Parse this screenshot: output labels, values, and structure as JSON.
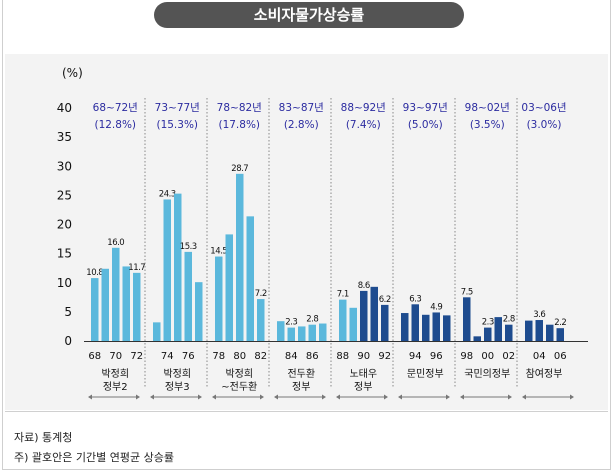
{
  "title": "소비자물가상승률",
  "source": "자료) 통계청",
  "note": "주) 괄호안은 기간별 연평균 상승률",
  "chart_data": {
    "type": "bar",
    "y_unit_label": "(%)",
    "ylim": [
      0,
      40
    ],
    "y_ticks": [
      "0",
      "5",
      "10",
      "15",
      "20",
      "25",
      "30",
      "35",
      "40"
    ],
    "colors": {
      "light": "#5bb8dc",
      "dark": "#1e4c8f",
      "period_text": "#2b2ba0"
    },
    "groups": [
      {
        "period": "68~72년",
        "avg": "(12.8%)",
        "label": [
          "박정희",
          "정부2"
        ],
        "color": "light",
        "values": [
          10.8,
          12.4,
          16.0,
          12.8,
          11.7
        ],
        "value_labels": [
          "10.8",
          "",
          "16.0",
          "",
          "11.7"
        ],
        "tick_labels": [
          "68",
          "",
          "70",
          "",
          "72"
        ]
      },
      {
        "period": "73~77년",
        "avg": "(15.3%)",
        "label": [
          "박정희",
          "정부3"
        ],
        "color": "light",
        "values": [
          3.2,
          24.3,
          25.3,
          15.3,
          10.1
        ],
        "value_labels": [
          "",
          "24.3",
          "",
          "15.3",
          ""
        ],
        "tick_labels": [
          "",
          "74",
          "",
          "76",
          ""
        ]
      },
      {
        "period": "78~82년",
        "avg": "(17.8%)",
        "label": [
          "박정희",
          "~전두환"
        ],
        "color": "light",
        "values": [
          14.5,
          18.3,
          28.7,
          21.4,
          7.2
        ],
        "value_labels": [
          "14.5",
          "",
          "28.7",
          "",
          "7.2"
        ],
        "tick_labels": [
          "78",
          "",
          "80",
          "",
          "82"
        ]
      },
      {
        "period": "83~87년",
        "avg": "(2.8%)",
        "label": [
          "전두환",
          "정부"
        ],
        "color": "light",
        "values": [
          3.4,
          2.3,
          2.5,
          2.8,
          3.0
        ],
        "value_labels": [
          "",
          "2.3",
          "",
          "2.8",
          ""
        ],
        "tick_labels": [
          "",
          "84",
          "",
          "86",
          ""
        ]
      },
      {
        "period": "88~92년",
        "avg": "(7.4%)",
        "label": [
          "노태우",
          "정부"
        ],
        "color": "mixed",
        "values": [
          7.1,
          5.7,
          8.6,
          9.3,
          6.2
        ],
        "value_labels": [
          "7.1",
          "",
          "8.6",
          "",
          "6.2"
        ],
        "tick_labels": [
          "88",
          "",
          "90",
          "",
          "92"
        ]
      },
      {
        "period": "93~97년",
        "avg": "(5.0%)",
        "label": [
          "문민정부"
        ],
        "color": "dark",
        "values": [
          4.8,
          6.3,
          4.5,
          4.9,
          4.4
        ],
        "value_labels": [
          "",
          "6.3",
          "",
          "4.9",
          ""
        ],
        "tick_labels": [
          "",
          "94",
          "",
          "96",
          ""
        ]
      },
      {
        "period": "98~02년",
        "avg": "(3.5%)",
        "label": [
          "국민의정부"
        ],
        "color": "dark",
        "values": [
          7.5,
          0.8,
          2.3,
          4.1,
          2.8
        ],
        "value_labels": [
          "7.5",
          "",
          "2.3",
          "",
          "2.8"
        ],
        "tick_labels": [
          "98",
          "",
          "00",
          "",
          "02"
        ]
      },
      {
        "period": "03~06년",
        "avg": "(3.0%)",
        "label": [
          "참여정부"
        ],
        "color": "dark",
        "values": [
          3.5,
          3.6,
          2.8,
          2.2
        ],
        "value_labels": [
          "",
          "3.6",
          "",
          "2.2"
        ],
        "tick_labels": [
          "",
          "04",
          "",
          "06"
        ]
      }
    ]
  }
}
